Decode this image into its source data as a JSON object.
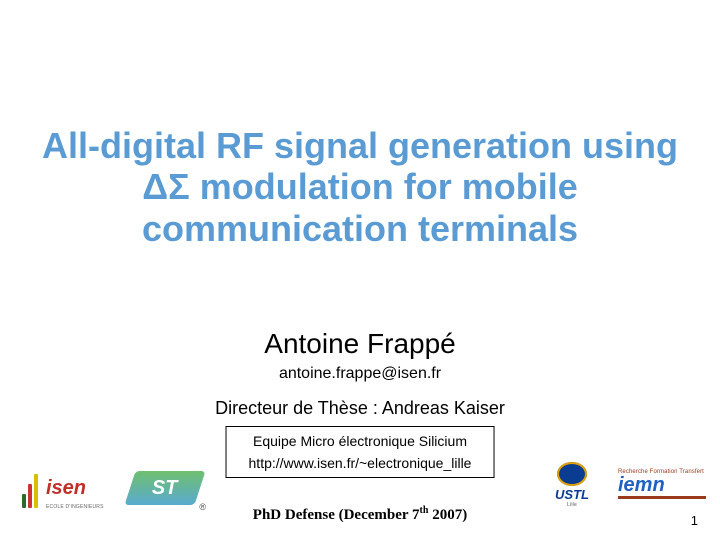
{
  "title": "All-digital RF signal generation using ΔΣ modulation for mobile communication terminals",
  "author": "Antoine Frappé",
  "email": "antoine.frappe@isen.fr",
  "director": "Directeur de Thèse : Andreas Kaiser",
  "team_box": {
    "line1": "Equipe Micro électronique Silicium",
    "line2": "http://www.isen.fr/~electronique_lille"
  },
  "defense": {
    "prefix": "PhD Defense (December 7",
    "sup": "th",
    "suffix": " 2007)"
  },
  "page_number": "1",
  "logos": {
    "isen": {
      "text": "isen",
      "sub": "ECOLE D'INGENIEURS"
    },
    "st": {
      "text": "ST"
    },
    "ustl": {
      "text": "USTL",
      "sub": "Lille"
    },
    "iemn": {
      "text": "iemn",
      "top": "Recherche Formation Transfert"
    }
  },
  "colors": {
    "title": "#5a9bd4",
    "background": "#ffffff",
    "text": "#000000"
  }
}
